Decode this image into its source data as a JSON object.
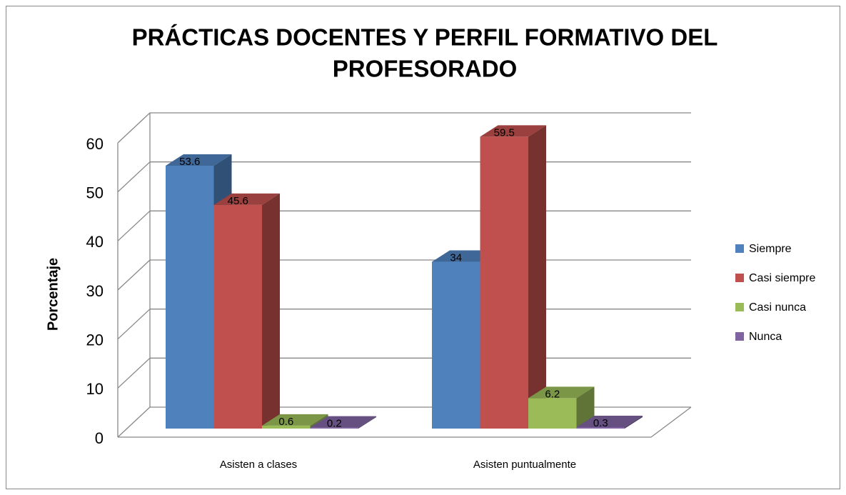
{
  "chart_data": {
    "type": "bar3d",
    "title": [
      "PRÁCTICAS DOCENTES Y PERFIL FORMATIVO DEL",
      "PROFESORADO"
    ],
    "ylabel": "Porcentaje",
    "categories": [
      "Asisten a clases",
      "Asisten puntualmente"
    ],
    "series": [
      {
        "name": "Siempre",
        "color": "#4f81bd",
        "values": [
          53.6,
          34
        ]
      },
      {
        "name": "Casi siempre",
        "color": "#c0504d",
        "values": [
          45.6,
          59.5
        ]
      },
      {
        "name": "Casi nunca",
        "color": "#9bbb59",
        "values": [
          0.6,
          6.2
        ]
      },
      {
        "name": "Nunca",
        "color": "#8064a2",
        "values": [
          0.2,
          0.3
        ]
      }
    ],
    "ylim": [
      0,
      60
    ],
    "yticks": [
      0,
      10,
      20,
      30,
      40,
      50,
      60
    ],
    "grid": true,
    "legend": "right"
  }
}
